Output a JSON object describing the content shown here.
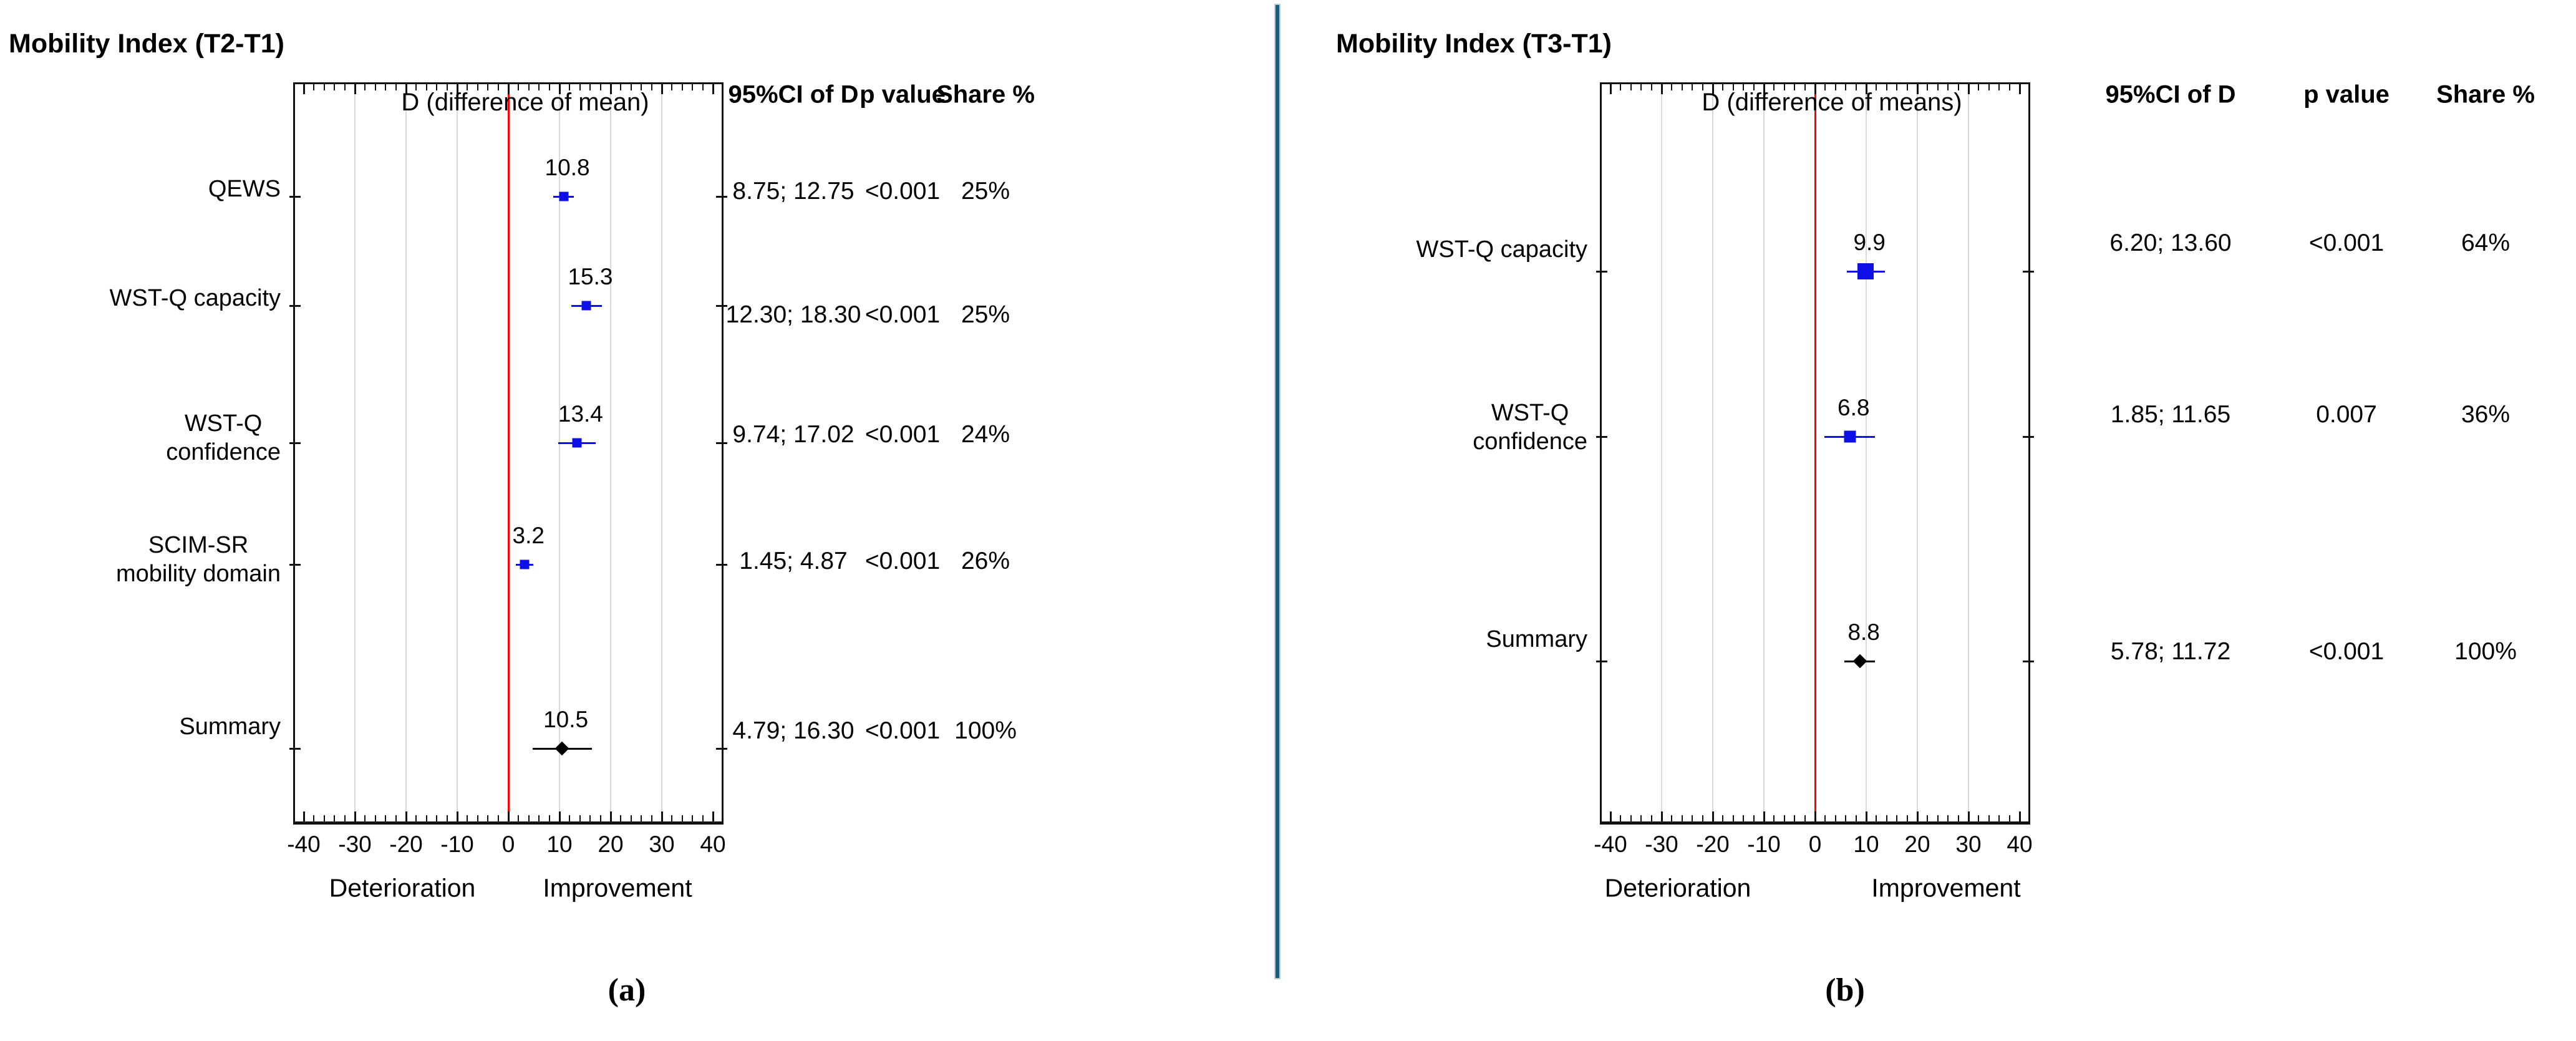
{
  "figure": {
    "background": "#ffffff",
    "divider_color": "#1e5b7d",
    "reference_line_color": "#ff0000",
    "marker_blue": "#0f0fe8",
    "summary_black": "#000000",
    "grid_color": "#d9d9d9",
    "panels": [
      {
        "id": "a",
        "caption": "(a)",
        "header_title": "Mobility Index (T2-T1)",
        "plot_title": "D (difference of mean)",
        "direction_left": "Deterioration",
        "direction_right": "Improvement",
        "table_headers": [
          "95%CI of D",
          "p value",
          "Share %"
        ]
      },
      {
        "id": "b",
        "caption": "(b)",
        "header_title": "Mobility Index (T3-T1)",
        "plot_title": "D (difference of means)",
        "direction_left": "Deterioration",
        "direction_right": "Improvement",
        "table_headers": [
          "95%CI of D",
          "p value",
          "Share %"
        ]
      }
    ]
  },
  "chart_data": [
    {
      "type": "forest",
      "panel": "a",
      "title": "Mobility Index (T2-T1)",
      "axis_note": "D (difference of mean)",
      "xlim": [
        -42,
        42
      ],
      "x_ticks": [
        -40,
        -30,
        -20,
        -10,
        0,
        10,
        20,
        30,
        40
      ],
      "reference_line_x": 0,
      "grid": true,
      "direction_labels": {
        "negative": "Deterioration",
        "positive": "Improvement"
      },
      "columns": [
        "95%CI of D",
        "p value",
        "Share %"
      ],
      "rows": [
        {
          "label": "QEWS",
          "lines": [
            "QEWS"
          ],
          "d": 10.8,
          "ci": [
            8.75,
            12.75
          ],
          "ci_text": "8.75; 12.75",
          "p_value": "<0.001",
          "share": "25%",
          "share_num": 25,
          "marker": "square"
        },
        {
          "label": "WST-Q capacity",
          "lines": [
            "WST-Q capacity"
          ],
          "d": 15.3,
          "ci": [
            12.3,
            18.3
          ],
          "ci_text": "12.30; 18.30",
          "p_value": "<0.001",
          "share": "25%",
          "share_num": 25,
          "marker": "square"
        },
        {
          "label": "WST-Q confidence",
          "lines": [
            "WST-Q",
            "confidence"
          ],
          "d": 13.4,
          "ci": [
            9.74,
            17.02
          ],
          "ci_text": "9.74; 17.02",
          "p_value": "<0.001",
          "share": "24%",
          "share_num": 24,
          "marker": "square"
        },
        {
          "label": "SCIM-SR mobility domain",
          "lines": [
            "SCIM-SR",
            "mobility domain"
          ],
          "d": 3.2,
          "ci": [
            1.45,
            4.87
          ],
          "ci_text": "1.45; 4.87",
          "p_value": "<0.001",
          "share": "26%",
          "share_num": 26,
          "marker": "square"
        },
        {
          "label": "Summary",
          "lines": [
            "Summary"
          ],
          "d": 10.5,
          "ci": [
            4.79,
            16.3
          ],
          "ci_text": "4.79; 16.30",
          "p_value": "<0.001",
          "share": "100%",
          "share_num": 100,
          "marker": "diamond"
        }
      ]
    },
    {
      "type": "forest",
      "panel": "b",
      "title": "Mobility Index (T3-T1)",
      "axis_note": "D (difference of means)",
      "xlim": [
        -42,
        42
      ],
      "x_ticks": [
        -40,
        -30,
        -20,
        -10,
        0,
        10,
        20,
        30,
        40
      ],
      "reference_line_x": 0,
      "grid": true,
      "direction_labels": {
        "negative": "Deterioration",
        "positive": "Improvement"
      },
      "columns": [
        "95%CI of D",
        "p value",
        "Share %"
      ],
      "rows": [
        {
          "label": "WST-Q capacity",
          "lines": [
            "WST-Q capacity"
          ],
          "d": 9.9,
          "ci": [
            6.2,
            13.6
          ],
          "ci_text": "6.20; 13.60",
          "p_value": "<0.001",
          "share": "64%",
          "share_num": 64,
          "marker": "square"
        },
        {
          "label": "WST-Q confidence",
          "lines": [
            "WST-Q",
            "confidence"
          ],
          "d": 6.8,
          "ci": [
            1.85,
            11.65
          ],
          "ci_text": "1.85; 11.65",
          "p_value": "0.007",
          "share": "36%",
          "share_num": 36,
          "marker": "square"
        },
        {
          "label": "Summary",
          "lines": [
            "Summary"
          ],
          "d": 8.8,
          "ci": [
            5.78,
            11.72
          ],
          "ci_text": "5.78; 11.72",
          "p_value": "<0.001",
          "share": "100%",
          "share_num": 100,
          "marker": "diamond"
        }
      ]
    }
  ]
}
